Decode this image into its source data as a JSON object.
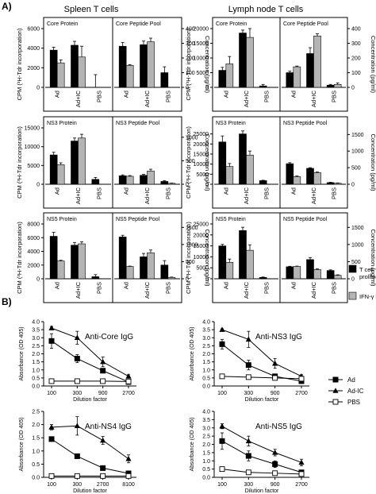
{
  "labels": {
    "panel_a": "A)",
    "panel_b": "B)",
    "spleen_title": "Spleen T cells",
    "lymph_title": "Lymph node T cells",
    "cpm_ylabel": "CPM (³H-Tdr incorporation)",
    "conc_ylabel": "Concentration (pg/ml)",
    "groups": [
      "Ad",
      "Ad+IC",
      "PBS"
    ],
    "absorbance_ylabel": "Absorbance (OD 405)",
    "dilution_xlabel": "Dilution factor"
  },
  "colors": {
    "proliferation": "#000000",
    "ifn": "#b4b4b4",
    "open": "#ffffff"
  },
  "legend_a": [
    {
      "label": "T cell proliferation",
      "color": "#000000"
    },
    {
      "label": "IFN-γ level",
      "color": "#b4b4b4"
    }
  ],
  "legend_b": [
    {
      "label": "Ad",
      "marker": "square-filled"
    },
    {
      "label": "Ad-IC",
      "marker": "triangle-filled"
    },
    {
      "label": "PBS",
      "marker": "square-open"
    }
  ],
  "chart_data": [
    {
      "type": "bar",
      "panel": "Spleen T cells / Core",
      "left_title": "Core Protein",
      "right_title": "Core Peptide Pool",
      "categories": [
        "Ad",
        "Ad+IC",
        "PBS"
      ],
      "cpm_ticks": [
        0,
        2000,
        4000,
        6000
      ],
      "cpm_max": 6000,
      "conc_ticks": [
        0,
        100,
        200,
        300,
        400
      ],
      "conc_max": 400,
      "series": [
        {
          "name": "T cell proliferation",
          "axis": "cpm",
          "side": "left",
          "values": [
            3800,
            4300,
            0
          ],
          "errors": [
            300,
            400,
            1300
          ]
        },
        {
          "name": "IFN-γ level",
          "axis": "cpm",
          "side": "left",
          "values": [
            2500,
            3100,
            0
          ],
          "errors": [
            300,
            1100,
            0
          ]
        },
        {
          "name": "T cell proliferation",
          "axis": "conc",
          "side": "right",
          "values": [
            280,
            290,
            100
          ],
          "errors": [
            25,
            25,
            40
          ]
        },
        {
          "name": "IFN-γ level",
          "axis": "conc",
          "side": "right",
          "values": [
            150,
            310,
            0
          ],
          "errors": [
            5,
            25,
            0
          ]
        }
      ]
    },
    {
      "type": "bar",
      "panel": "Lymph node T cells / Core",
      "left_title": "Core Protein",
      "right_title": "Core Peptide Pool",
      "categories": [
        "Ad",
        "Ad+IC",
        "PBS"
      ],
      "cpm_ticks": [
        0,
        5000,
        10000,
        15000,
        20000
      ],
      "cpm_max": 20000,
      "conc_ticks": [
        0,
        100,
        200,
        300,
        400
      ],
      "conc_max": 400,
      "series": [
        {
          "name": "T cell proliferation",
          "axis": "cpm",
          "side": "left",
          "values": [
            5800,
            18500,
            500
          ],
          "errors": [
            1000,
            1000,
            500
          ]
        },
        {
          "name": "IFN-γ level",
          "axis": "cpm",
          "side": "left",
          "values": [
            8000,
            17000,
            0
          ],
          "errors": [
            2500,
            3000,
            0
          ]
        },
        {
          "name": "T cell proliferation",
          "axis": "conc",
          "side": "right",
          "values": [
            100,
            230,
            15
          ],
          "errors": [
            10,
            40,
            5
          ]
        },
        {
          "name": "IFN-γ level",
          "axis": "conc",
          "side": "right",
          "values": [
            140,
            350,
            20
          ],
          "errors": [
            5,
            15,
            10
          ]
        }
      ]
    },
    {
      "type": "bar",
      "panel": "Spleen T cells / NS3",
      "left_title": "NS3 Protein",
      "right_title": "NS3 Peptide Pool",
      "categories": [
        "Ad",
        "Ad+IC",
        "PBS"
      ],
      "cpm_ticks": [
        0,
        5000,
        10000,
        15000
      ],
      "cpm_max": 15000,
      "conc_ticks": [
        0,
        500,
        1000
      ],
      "conc_max": 1200,
      "series": [
        {
          "name": "T cell proliferation",
          "axis": "cpm",
          "side": "left",
          "values": [
            7800,
            11500,
            1300
          ],
          "errors": [
            700,
            800,
            500
          ]
        },
        {
          "name": "IFN-γ level",
          "axis": "cpm",
          "side": "left",
          "values": [
            5200,
            12300,
            0
          ],
          "errors": [
            500,
            1000,
            0
          ]
        },
        {
          "name": "T cell proliferation",
          "axis": "conc",
          "side": "right",
          "values": [
            180,
            190,
            60
          ],
          "errors": [
            20,
            20,
            15
          ]
        },
        {
          "name": "IFN-γ level",
          "axis": "conc",
          "side": "right",
          "values": [
            170,
            280,
            20
          ],
          "errors": [
            15,
            40,
            5
          ]
        }
      ]
    },
    {
      "type": "bar",
      "panel": "Lymph node T cells / NS3",
      "left_title": "NS3 Protein",
      "right_title": "NS3 Peptide Pool",
      "categories": [
        "Ad",
        "Ad+IC",
        "PBS"
      ],
      "cpm_ticks": [
        0,
        5000,
        10000,
        15000,
        20000,
        25000
      ],
      "cpm_max": 28000,
      "conc_ticks": [
        0,
        500,
        1000,
        1500
      ],
      "conc_max": 1700,
      "series": [
        {
          "name": "T cell proliferation",
          "axis": "cpm",
          "side": "left",
          "values": [
            21000,
            25000,
            1800
          ],
          "errors": [
            3000,
            1500,
            200
          ]
        },
        {
          "name": "IFN-γ level",
          "axis": "cpm",
          "side": "left",
          "values": [
            8800,
            14500,
            0
          ],
          "errors": [
            1500,
            2000,
            0
          ]
        },
        {
          "name": "T cell proliferation",
          "axis": "conc",
          "side": "right",
          "values": [
            620,
            480,
            50
          ],
          "errors": [
            30,
            20,
            10
          ]
        },
        {
          "name": "IFN-γ level",
          "axis": "conc",
          "side": "right",
          "values": [
            230,
            350,
            30
          ],
          "errors": [
            20,
            20,
            10
          ]
        }
      ]
    },
    {
      "type": "bar",
      "panel": "Spleen T cells / NS5",
      "left_title": "NS5 Protein",
      "right_title": "NS5 Peptide Pool",
      "categories": [
        "Ad",
        "Ad+IC",
        "PBS"
      ],
      "cpm_ticks": [
        0,
        2000,
        4000,
        6000,
        8000
      ],
      "cpm_max": 8000,
      "conc_ticks": [
        0,
        500,
        1000,
        1500
      ],
      "conc_max": 1600,
      "series": [
        {
          "name": "T cell proliferation",
          "axis": "cpm",
          "side": "left",
          "values": [
            6200,
            4900,
            300
          ],
          "errors": [
            600,
            400,
            300
          ]
        },
        {
          "name": "IFN-γ level",
          "axis": "cpm",
          "side": "left",
          "values": [
            2600,
            5100,
            0
          ],
          "errors": [
            100,
            300,
            0
          ]
        },
        {
          "name": "T cell proliferation",
          "axis": "conc",
          "side": "right",
          "values": [
            1220,
            640,
            400
          ],
          "errors": [
            50,
            100,
            130
          ]
        },
        {
          "name": "IFN-γ level",
          "axis": "conc",
          "side": "right",
          "values": [
            360,
            760,
            40
          ],
          "errors": [
            10,
            80,
            10
          ]
        }
      ]
    },
    {
      "type": "bar",
      "panel": "Lymph node T cells / NS5",
      "left_title": "NS5 Protein",
      "right_title": "NS5 Peptide Pool",
      "categories": [
        "Ad",
        "Ad+IC",
        "PBS"
      ],
      "cpm_ticks": [
        0,
        5000,
        10000,
        15000,
        20000,
        25000
      ],
      "cpm_max": 25000,
      "conc_ticks": [
        0,
        500,
        1000,
        1500
      ],
      "conc_max": 1600,
      "series": [
        {
          "name": "T cell proliferation",
          "axis": "cpm",
          "side": "left",
          "values": [
            15000,
            22000,
            600
          ],
          "errors": [
            700,
            1500,
            200
          ]
        },
        {
          "name": "IFN-γ level",
          "axis": "cpm",
          "side": "left",
          "values": [
            7500,
            13000,
            0
          ],
          "errors": [
            1500,
            2500,
            0
          ]
        },
        {
          "name": "T cell proliferation",
          "axis": "conc",
          "side": "right",
          "values": [
            350,
            560,
            240
          ],
          "errors": [
            15,
            60,
            20
          ]
        },
        {
          "name": "IFN-γ level",
          "axis": "conc",
          "side": "right",
          "values": [
            360,
            270,
            100
          ],
          "errors": [
            10,
            20,
            15
          ]
        }
      ]
    },
    {
      "type": "line",
      "panel": "Anti-Core IgG",
      "title": "Anti-Core IgG",
      "xlabel": "Dilution factor",
      "ylabel": "Absorbance (OD 405)",
      "x": [
        "100",
        "300",
        "900",
        "2700"
      ],
      "yticks": [
        0,
        0.5,
        1,
        1.5,
        2,
        2.5,
        3,
        3.5,
        4
      ],
      "ylim": [
        0,
        4
      ],
      "series": [
        {
          "name": "Ad",
          "marker": "square-filled",
          "values": [
            2.8,
            1.7,
            0.95,
            0.25
          ],
          "errors": [
            0.45,
            0.25,
            0.1,
            0.05
          ]
        },
        {
          "name": "Ad-IC",
          "marker": "triangle-filled",
          "values": [
            3.6,
            3.0,
            1.5,
            0.6
          ],
          "errors": [
            0.1,
            0.4,
            0.3,
            0.1
          ]
        },
        {
          "name": "PBS",
          "marker": "square-open",
          "values": [
            0.3,
            0.3,
            0.3,
            0.28
          ],
          "errors": [
            0,
            0,
            0,
            0
          ]
        }
      ]
    },
    {
      "type": "line",
      "panel": "Anti-NS3 IgG",
      "title": "Anti-NS3 IgG",
      "xlabel": "Dilution factor",
      "ylabel": "Absorbance (OD 405)",
      "x": [
        "100",
        "300",
        "900",
        "2700"
      ],
      "yticks": [
        0,
        0.5,
        1,
        1.5,
        2,
        2.5,
        3,
        3.5,
        4
      ],
      "ylim": [
        0,
        4
      ],
      "series": [
        {
          "name": "Ad",
          "marker": "square-filled",
          "values": [
            2.6,
            1.3,
            0.6,
            0.3
          ],
          "errors": [
            0.3,
            0.3,
            0.05,
            0.05
          ]
        },
        {
          "name": "Ad-IC",
          "marker": "triangle-filled",
          "values": [
            3.5,
            2.9,
            1.4,
            0.6
          ],
          "errors": [
            0.05,
            0.5,
            0.3,
            0.1
          ]
        },
        {
          "name": "PBS",
          "marker": "square-open",
          "values": [
            0.6,
            0.55,
            0.5,
            0.45
          ],
          "errors": [
            0.05,
            0.05,
            0.05,
            0.05
          ]
        }
      ]
    },
    {
      "type": "line",
      "panel": "Anti-NS4 IgG",
      "title": "Anti-NS4 IgG",
      "xlabel": "Dilution factor",
      "ylabel": "Absorbance (OD 405)",
      "x": [
        "100",
        "300",
        "2700",
        "8100"
      ],
      "yticks": [
        0,
        0.5,
        1,
        1.5,
        2,
        2.5
      ],
      "ylim": [
        0,
        2.5
      ],
      "series": [
        {
          "name": "Ad",
          "marker": "square-filled",
          "values": [
            1.45,
            0.8,
            0.35,
            0.15
          ],
          "errors": [
            0.05,
            0.05,
            0.05,
            0.05
          ]
        },
        {
          "name": "Ad-IC",
          "marker": "triangle-filled",
          "values": [
            1.9,
            1.95,
            1.4,
            0.7
          ],
          "errors": [
            0.1,
            0.35,
            0.15,
            0.15
          ]
        },
        {
          "name": "PBS",
          "marker": "square-open",
          "values": [
            0.05,
            0.05,
            0.05,
            0.05
          ],
          "errors": [
            0,
            0,
            0,
            0
          ]
        }
      ]
    },
    {
      "type": "line",
      "panel": "Anti-NS5 IgG",
      "title": "Anti-NS5 IgG",
      "xlabel": "Dilution factor",
      "ylabel": "Absorbance (OD 405)",
      "x": [
        "100",
        "300",
        "900",
        "2700"
      ],
      "yticks": [
        0,
        0.5,
        1,
        1.5,
        2,
        2.5,
        3,
        3.5,
        4
      ],
      "ylim": [
        0,
        4
      ],
      "series": [
        {
          "name": "Ad",
          "marker": "square-filled",
          "values": [
            2.2,
            1.3,
            0.8,
            0.3
          ],
          "errors": [
            0.5,
            0.3,
            0.2,
            0.05
          ]
        },
        {
          "name": "Ad-IC",
          "marker": "triangle-filled",
          "values": [
            3.1,
            2.2,
            1.5,
            0.9
          ],
          "errors": [
            0.15,
            0.3,
            0.2,
            0.2
          ]
        },
        {
          "name": "PBS",
          "marker": "square-open",
          "values": [
            0.5,
            0.3,
            0.25,
            0.2
          ],
          "errors": [
            0.05,
            0.05,
            0.05,
            0.05
          ]
        }
      ]
    }
  ]
}
